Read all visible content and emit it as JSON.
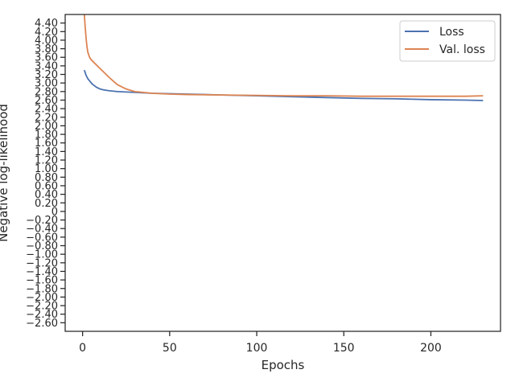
{
  "chart_data": {
    "type": "line",
    "title": "",
    "xlabel": "Epochs",
    "ylabel": "Negative log-likelihood",
    "xlim": [
      -10,
      240
    ],
    "ylim": [
      -2.8,
      4.6
    ],
    "xticks": [
      0,
      50,
      100,
      150,
      200
    ],
    "xtick_labels": [
      "0",
      "50",
      "100",
      "150",
      "200"
    ],
    "yticks": [
      -2.6,
      -2.4,
      -2.2,
      -2.0,
      -1.8,
      -1.6,
      -1.4,
      -1.2,
      -1.0,
      -0.8,
      -0.6,
      -0.4,
      -0.2,
      0.0,
      0.2,
      0.4,
      0.6,
      0.8,
      1.0,
      1.2,
      1.4,
      1.6,
      1.8,
      2.0,
      2.2,
      2.4,
      2.6,
      2.8,
      3.0,
      3.2,
      3.4,
      3.6,
      3.8,
      4.0,
      4.2,
      4.4
    ],
    "ytick_labels": [
      "−2.60",
      "−2.40",
      "−2.20",
      "−2.00",
      "−1.80",
      "−1.60",
      "−1.40",
      "−1.20",
      "−1.00",
      "−0.80",
      "−0.60",
      "−0.40",
      "−0.20",
      "0",
      "0.20",
      "0.40",
      "0.60",
      "0.80",
      "1.00",
      "1.20",
      "1.40",
      "1.60",
      "1.80",
      "2.00",
      "2.20",
      "2.40",
      "2.60",
      "2.80",
      "3.00",
      "3.20",
      "3.40",
      "3.60",
      "3.80",
      "4.00",
      "4.20",
      "4.40"
    ],
    "grid": false,
    "legend_position": "top-right",
    "series": [
      {
        "name": "Loss",
        "color": "#4c72b0",
        "x": [
          1,
          2,
          3,
          4,
          5,
          6,
          7,
          8,
          9,
          10,
          12,
          15,
          20,
          30,
          40,
          50,
          60,
          80,
          100,
          120,
          140,
          160,
          180,
          200,
          220,
          230
        ],
        "y": [
          3.3,
          3.18,
          3.1,
          3.05,
          3.0,
          2.96,
          2.93,
          2.9,
          2.88,
          2.86,
          2.84,
          2.82,
          2.8,
          2.78,
          2.76,
          2.75,
          2.74,
          2.72,
          2.7,
          2.68,
          2.66,
          2.64,
          2.63,
          2.61,
          2.6,
          2.59
        ]
      },
      {
        "name": "Val. loss",
        "color": "#dd8452",
        "x": [
          1,
          1.5,
          2,
          2.5,
          3,
          4,
          5,
          6,
          8,
          10,
          12,
          15,
          18,
          20,
          25,
          30,
          40,
          50,
          60,
          80,
          100,
          120,
          140,
          160,
          180,
          200,
          220,
          230
        ],
        "y": [
          4.6,
          4.3,
          4.05,
          3.85,
          3.72,
          3.6,
          3.54,
          3.5,
          3.42,
          3.34,
          3.26,
          3.14,
          3.03,
          2.96,
          2.86,
          2.8,
          2.76,
          2.74,
          2.73,
          2.72,
          2.71,
          2.7,
          2.7,
          2.69,
          2.69,
          2.69,
          2.69,
          2.7
        ]
      }
    ]
  }
}
